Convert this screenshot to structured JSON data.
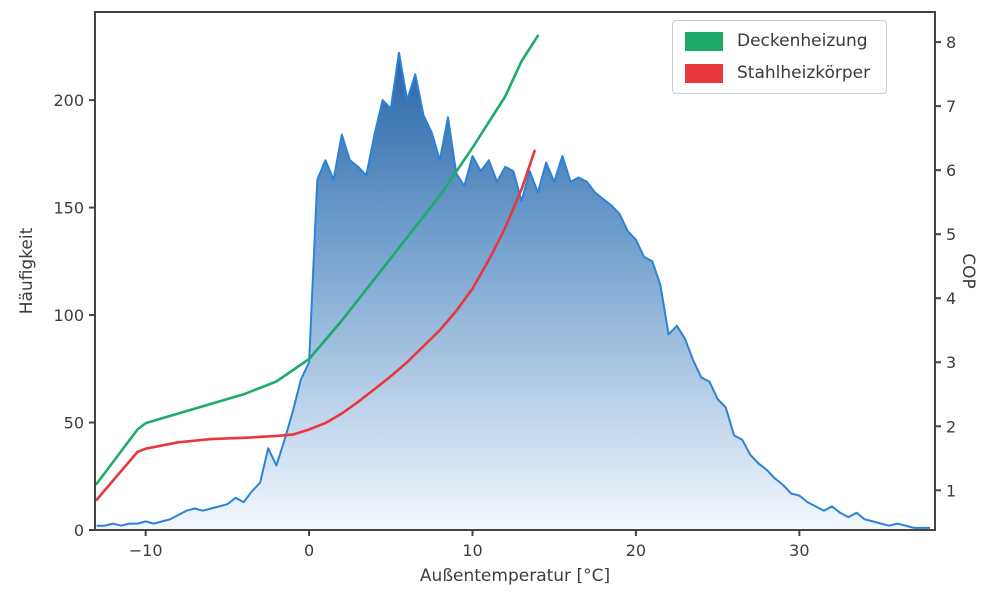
{
  "figure": {
    "background": "#ffffff",
    "text_color": "#3d3d3d",
    "spine_color": "#444444"
  },
  "chart_data": {
    "type": "area+line",
    "title": "",
    "xlabel": "Außentemperatur [°C]",
    "ylabel_left": "Häufigkeit",
    "ylabel_right": "COP",
    "xlim": [
      -13.1,
      38.3
    ],
    "ylim_left": [
      0,
      241
    ],
    "ylim_right": [
      0.38,
      8.47
    ],
    "grid": false,
    "x_ticks": [
      -10,
      0,
      10,
      20,
      30
    ],
    "x_tick_labels": [
      "−10",
      "0",
      "10",
      "20",
      "30"
    ],
    "y_ticks_left": [
      0,
      50,
      100,
      150,
      200
    ],
    "y_tick_labels_left": [
      "0",
      "50",
      "100",
      "150",
      "200"
    ],
    "y_ticks_right": [
      1,
      2,
      3,
      4,
      5,
      6,
      7,
      8
    ],
    "y_tick_labels_right": [
      "1",
      "2",
      "3",
      "4",
      "5",
      "6",
      "7",
      "8"
    ],
    "histogram": {
      "name": "Häufigkeit",
      "color": "#2b82d9",
      "fill_top": "#16599f",
      "fill_mid": "#7fa9d3",
      "fill_bottom": "#f4f8fd",
      "x": [
        -13,
        -12.5,
        -12,
        -11.5,
        -11,
        -10.5,
        -10,
        -9.5,
        -9,
        -8.5,
        -8,
        -7.5,
        -7,
        -6.5,
        -6,
        -5.5,
        -5,
        -4.5,
        -4,
        -3.5,
        -3,
        -2.5,
        -2,
        -1.5,
        -1,
        -0.5,
        0,
        0.5,
        1,
        1.5,
        2,
        2.5,
        3,
        3.5,
        4,
        4.5,
        5,
        5.5,
        6,
        6.5,
        7,
        7.5,
        8,
        8.5,
        9,
        9.5,
        10,
        10.5,
        11,
        11.5,
        12,
        12.5,
        13,
        13.5,
        14,
        14.5,
        15,
        15.5,
        16,
        16.5,
        17,
        17.5,
        18,
        18.5,
        19,
        19.5,
        20,
        20.5,
        21,
        21.5,
        22,
        22.5,
        23,
        23.5,
        24,
        24.5,
        25,
        25.5,
        26,
        26.5,
        27,
        27.5,
        28,
        28.5,
        29,
        29.5,
        30,
        30.5,
        31,
        31.5,
        32,
        32.5,
        33,
        33.5,
        34,
        34.5,
        35,
        35.5,
        36,
        36.5,
        37,
        37.5,
        38
      ],
      "y": [
        2,
        2,
        3,
        2,
        3,
        3,
        4,
        3,
        4,
        5,
        7,
        9,
        10,
        9,
        10,
        11,
        12,
        15,
        13,
        18,
        22,
        38,
        30,
        42,
        55,
        70,
        78,
        163,
        172,
        163,
        184,
        172,
        169,
        165,
        184,
        200,
        196,
        222,
        200,
        212,
        193,
        185,
        172,
        192,
        166,
        160,
        174,
        167,
        172,
        162,
        169,
        167,
        153,
        167,
        157,
        171,
        162,
        174,
        162,
        164,
        162,
        157,
        154,
        151,
        147,
        139,
        135,
        127,
        125,
        114,
        91,
        95,
        89,
        79,
        71,
        69,
        61,
        57,
        44,
        42,
        35,
        31,
        28,
        24,
        21,
        17,
        16,
        13,
        11,
        9,
        11,
        8,
        6,
        8,
        5,
        4,
        3,
        2,
        3,
        2,
        1,
        1,
        1
      ]
    },
    "series": [
      {
        "id": "deckenheizung",
        "name": "Deckenheizung",
        "color": "#1cab68",
        "axis": "right",
        "x": [
          -13,
          -10.5,
          -10,
          -8,
          -6,
          -4,
          -2,
          0,
          2,
          4,
          6,
          8,
          10,
          12,
          13,
          14
        ],
        "y": [
          1.1,
          1.95,
          2.05,
          2.2,
          2.35,
          2.5,
          2.7,
          3.05,
          3.65,
          4.3,
          4.95,
          5.6,
          6.35,
          7.15,
          7.7,
          8.1
        ]
      },
      {
        "id": "stahlheizkoerper",
        "name": "Stahlheizkörper",
        "color": "#e8383d",
        "axis": "right",
        "x": [
          -13,
          -10.5,
          -10,
          -8,
          -6,
          -4,
          -2,
          -1,
          0,
          1,
          2,
          3,
          4,
          5,
          6,
          7,
          8,
          9,
          10,
          11,
          12,
          13,
          13.8
        ],
        "y": [
          0.85,
          1.6,
          1.65,
          1.75,
          1.8,
          1.82,
          1.85,
          1.87,
          1.95,
          2.05,
          2.2,
          2.38,
          2.58,
          2.78,
          3.0,
          3.25,
          3.5,
          3.8,
          4.15,
          4.6,
          5.1,
          5.7,
          6.3
        ]
      }
    ],
    "legend": {
      "position": "upper right",
      "entries": [
        "Deckenheizung",
        "Stahlheizkörper"
      ]
    }
  }
}
